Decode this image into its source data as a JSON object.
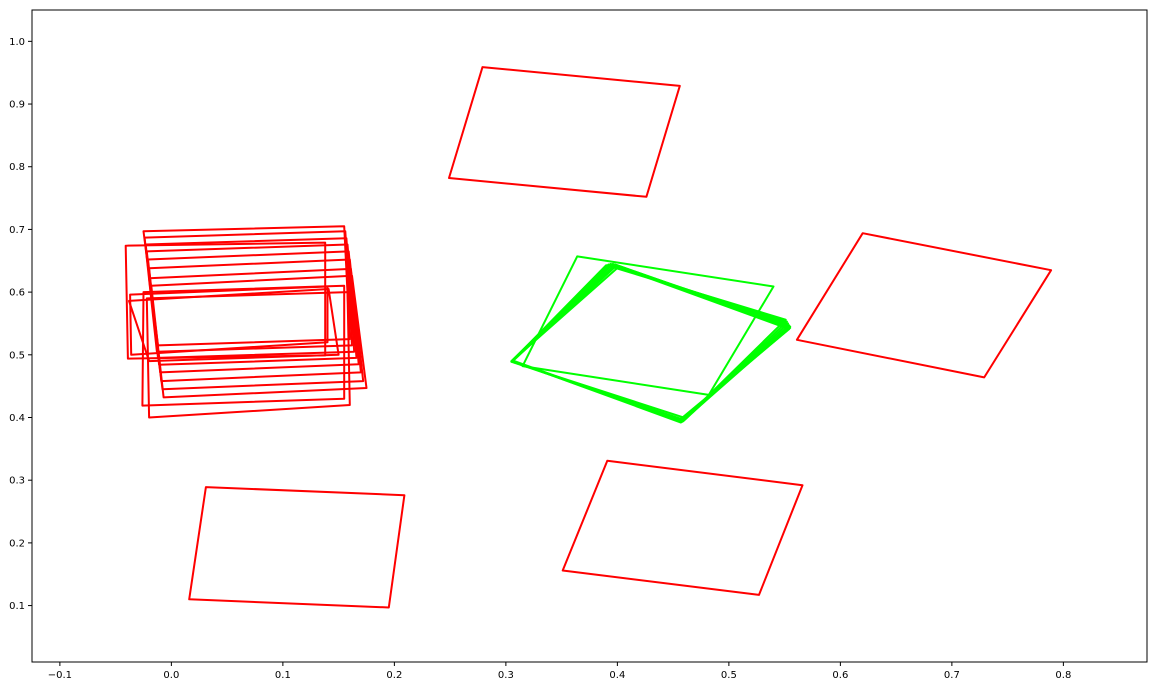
{
  "chart_data": {
    "type": "line",
    "title": "",
    "xlabel": "",
    "ylabel": "",
    "xlim": [
      -0.125,
      0.875
    ],
    "ylim": [
      0.01,
      1.05
    ],
    "grid": false,
    "x_ticks": [
      -0.1,
      0.0,
      0.1,
      0.2,
      0.3,
      0.4,
      0.5,
      0.6,
      0.7,
      0.8
    ],
    "x_tick_labels": [
      "−0.1",
      "0.0",
      "0.1",
      "0.2",
      "0.3",
      "0.4",
      "0.5",
      "0.6",
      "0.7",
      "0.8"
    ],
    "y_ticks": [
      0.1,
      0.2,
      0.3,
      0.4,
      0.5,
      0.6,
      0.7,
      0.8,
      0.9,
      1.0
    ],
    "y_tick_labels": [
      "0.1",
      "0.2",
      "0.3",
      "0.4",
      "0.5",
      "0.6",
      "0.7",
      "0.8",
      "0.9",
      "1.0"
    ],
    "colors": {
      "red": "#ff0000",
      "green": "#00ff00"
    },
    "series": [
      {
        "color": "red",
        "points": [
          [
            0.279,
            0.959
          ],
          [
            0.456,
            0.929
          ],
          [
            0.426,
            0.752
          ],
          [
            0.249,
            0.782
          ]
        ]
      },
      {
        "color": "red",
        "points": [
          [
            0.62,
            0.694
          ],
          [
            0.789,
            0.635
          ],
          [
            0.729,
            0.464
          ],
          [
            0.561,
            0.524
          ]
        ]
      },
      {
        "color": "red",
        "points": [
          [
            0.031,
            0.289
          ],
          [
            0.209,
            0.276
          ],
          [
            0.195,
            0.097
          ],
          [
            0.016,
            0.11
          ]
        ]
      },
      {
        "color": "red",
        "points": [
          [
            0.391,
            0.331
          ],
          [
            0.566,
            0.292
          ],
          [
            0.527,
            0.117
          ],
          [
            0.351,
            0.156
          ]
        ]
      },
      {
        "color": "red",
        "points": [
          [
            -0.041,
            0.674
          ],
          [
            0.138,
            0.679
          ],
          [
            0.138,
            0.499
          ],
          [
            -0.039,
            0.494
          ]
        ]
      },
      {
        "color": "red",
        "points": [
          [
            -0.037,
            0.596
          ],
          [
            0.14,
            0.609
          ],
          [
            0.14,
            0.52
          ],
          [
            -0.036,
            0.5
          ]
        ]
      },
      {
        "color": "red",
        "points": [
          [
            -0.038,
            0.586
          ],
          [
            0.141,
            0.605
          ],
          [
            0.15,
            0.5
          ],
          [
            -0.02,
            0.49
          ]
        ]
      },
      {
        "color": "red",
        "points": [
          [
            -0.025,
            0.697
          ],
          [
            0.155,
            0.705
          ],
          [
            0.16,
            0.525
          ],
          [
            -0.012,
            0.515
          ]
        ]
      },
      {
        "color": "red",
        "points": [
          [
            -0.024,
            0.687
          ],
          [
            0.156,
            0.697
          ],
          [
            0.162,
            0.515
          ],
          [
            -0.013,
            0.505
          ]
        ]
      },
      {
        "color": "red",
        "points": [
          [
            -0.023,
            0.676
          ],
          [
            0.157,
            0.686
          ],
          [
            0.164,
            0.505
          ],
          [
            -0.012,
            0.495
          ]
        ]
      },
      {
        "color": "red",
        "points": [
          [
            -0.022,
            0.665
          ],
          [
            0.158,
            0.676
          ],
          [
            0.166,
            0.495
          ],
          [
            -0.011,
            0.484
          ]
        ]
      },
      {
        "color": "red",
        "points": [
          [
            -0.021,
            0.652
          ],
          [
            0.159,
            0.665
          ],
          [
            0.168,
            0.485
          ],
          [
            -0.01,
            0.472
          ]
        ]
      },
      {
        "color": "red",
        "points": [
          [
            -0.02,
            0.638
          ],
          [
            0.16,
            0.652
          ],
          [
            0.17,
            0.472
          ],
          [
            -0.009,
            0.458
          ]
        ]
      },
      {
        "color": "red",
        "points": [
          [
            -0.02,
            0.622
          ],
          [
            0.161,
            0.637
          ],
          [
            0.172,
            0.458
          ],
          [
            -0.008,
            0.445
          ]
        ]
      },
      {
        "color": "red",
        "points": [
          [
            -0.018,
            0.61
          ],
          [
            0.162,
            0.626
          ],
          [
            0.175,
            0.447
          ],
          [
            -0.007,
            0.432
          ]
        ]
      },
      {
        "color": "red",
        "points": [
          [
            -0.025,
            0.6
          ],
          [
            0.155,
            0.61
          ],
          [
            0.155,
            0.43
          ],
          [
            -0.026,
            0.419
          ]
        ]
      },
      {
        "color": "red",
        "points": [
          [
            -0.022,
            0.59
          ],
          [
            0.158,
            0.6
          ],
          [
            0.16,
            0.42
          ],
          [
            -0.02,
            0.4
          ]
        ]
      },
      {
        "color": "green",
        "points": [
          [
            0.364,
            0.657
          ],
          [
            0.54,
            0.609
          ],
          [
            0.482,
            0.436
          ],
          [
            0.315,
            0.482
          ]
        ]
      },
      {
        "color": "green",
        "points": [
          [
            0.39,
            0.643
          ],
          [
            0.551,
            0.556
          ],
          [
            0.461,
            0.399
          ],
          [
            0.305,
            0.489
          ]
        ]
      },
      {
        "color": "green",
        "points": [
          [
            0.392,
            0.644
          ],
          [
            0.552,
            0.553
          ],
          [
            0.46,
            0.396
          ],
          [
            0.305,
            0.489
          ]
        ]
      },
      {
        "color": "green",
        "points": [
          [
            0.394,
            0.645
          ],
          [
            0.553,
            0.55
          ],
          [
            0.459,
            0.394
          ],
          [
            0.305,
            0.49
          ]
        ]
      },
      {
        "color": "green",
        "points": [
          [
            0.396,
            0.645
          ],
          [
            0.554,
            0.547
          ],
          [
            0.458,
            0.393
          ],
          [
            0.306,
            0.49
          ]
        ]
      },
      {
        "color": "green",
        "points": [
          [
            0.398,
            0.644
          ],
          [
            0.555,
            0.545
          ],
          [
            0.457,
            0.392
          ],
          [
            0.306,
            0.49
          ]
        ]
      },
      {
        "color": "green",
        "points": [
          [
            0.399,
            0.642
          ],
          [
            0.555,
            0.543
          ],
          [
            0.456,
            0.394
          ],
          [
            0.306,
            0.49
          ]
        ]
      },
      {
        "color": "green",
        "points": [
          [
            0.401,
            0.64
          ],
          [
            0.554,
            0.541
          ],
          [
            0.455,
            0.395
          ],
          [
            0.306,
            0.491
          ]
        ]
      }
    ]
  }
}
